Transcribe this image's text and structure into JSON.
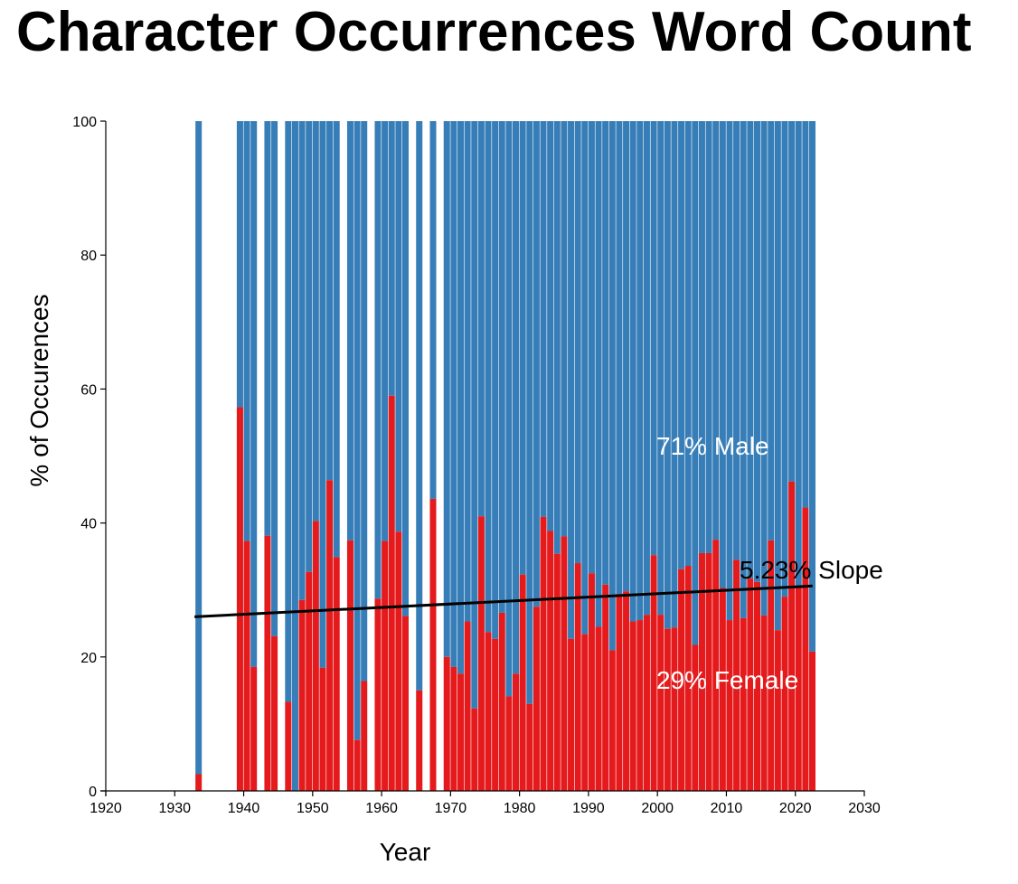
{
  "title": "Character Occurrences Word Count",
  "chart_data": {
    "type": "bar",
    "stacked": true,
    "xlabel": "Year",
    "ylabel": "% of Occurences",
    "xlim": [
      1920,
      2030
    ],
    "ylim": [
      0,
      100
    ],
    "x_ticks": [
      1920,
      1930,
      1940,
      1950,
      1960,
      1970,
      1980,
      1990,
      2000,
      2010,
      2020,
      2030
    ],
    "y_ticks": [
      0,
      20,
      40,
      60,
      80,
      100
    ],
    "grid": false,
    "colors": {
      "female": "#e41a1c",
      "male": "#377eb8",
      "trend": "#000000"
    },
    "years": [
      1933,
      1939,
      1940,
      1941,
      1943,
      1944,
      1946,
      1947,
      1948,
      1949,
      1950,
      1951,
      1952,
      1953,
      1955,
      1956,
      1957,
      1959,
      1960,
      1961,
      1962,
      1963,
      1965,
      1967,
      1969,
      1970,
      1971,
      1972,
      1973,
      1974,
      1975,
      1976,
      1977,
      1978,
      1979,
      1980,
      1981,
      1982,
      1983,
      1984,
      1985,
      1986,
      1987,
      1988,
      1989,
      1990,
      1991,
      1992,
      1993,
      1994,
      1995,
      1996,
      1997,
      1998,
      1999,
      2000,
      2001,
      2002,
      2003,
      2004,
      2005,
      2006,
      2007,
      2008,
      2009,
      2010,
      2011,
      2012,
      2013,
      2014,
      2015,
      2016,
      2017,
      2018,
      2019,
      2020,
      2021,
      2022
    ],
    "series": [
      {
        "name": "Female",
        "values": [
          2.5,
          57.3,
          37.3,
          18.5,
          38.1,
          23.1,
          13.3,
          0,
          28.5,
          32.7,
          40.3,
          18.4,
          46.4,
          34.9,
          37.4,
          7.6,
          16.4,
          28.7,
          37.3,
          59,
          38.7,
          26.1,
          15,
          43.6,
          20,
          18.5,
          17.5,
          25.3,
          12.3,
          41,
          23.7,
          22.7,
          26.6,
          14.1,
          17.5,
          32.3,
          13,
          27.5,
          40.9,
          38.8,
          35.4,
          38,
          22.7,
          34,
          23.4,
          32.5,
          24.5,
          30.8,
          21,
          29.4,
          29.8,
          25.3,
          25.5,
          26.3,
          35.2,
          26.3,
          24.2,
          24.4,
          33.1,
          33.6,
          21.8,
          35.5,
          35.5,
          37.5,
          30.3,
          25.5,
          34.5,
          25.8,
          31.7,
          31.2,
          26.2,
          37.4,
          24,
          29,
          46.2,
          30.5,
          42.3,
          20.8
        ]
      },
      {
        "name": "Male",
        "values": [
          97.5,
          42.7,
          62.7,
          81.5,
          61.9,
          76.9,
          86.7,
          100,
          71.5,
          67.3,
          59.7,
          81.6,
          53.6,
          65.1,
          62.6,
          92.4,
          83.6,
          71.3,
          62.7,
          41,
          61.3,
          73.9,
          85,
          56.4,
          80,
          81.5,
          82.5,
          74.7,
          87.7,
          59,
          76.3,
          77.3,
          73.4,
          85.9,
          82.5,
          67.7,
          87,
          72.5,
          59.1,
          61.2,
          64.6,
          62,
          77.3,
          66,
          76.6,
          67.5,
          75.5,
          69.2,
          79,
          70.6,
          70.2,
          74.7,
          74.5,
          73.7,
          64.8,
          73.7,
          75.8,
          75.6,
          66.9,
          66.4,
          78.2,
          64.5,
          64.5,
          62.5,
          69.7,
          74.5,
          65.5,
          74.2,
          68.3,
          68.8,
          73.8,
          62.6,
          76,
          71,
          53.8,
          69.5,
          57.7,
          79.2
        ]
      }
    ],
    "trend": {
      "x": [
        1933,
        2022
      ],
      "y": [
        26,
        30.6
      ]
    },
    "annotations": {
      "male": "71% Male",
      "female": "29% Female",
      "slope": "5.23% Slope"
    }
  }
}
